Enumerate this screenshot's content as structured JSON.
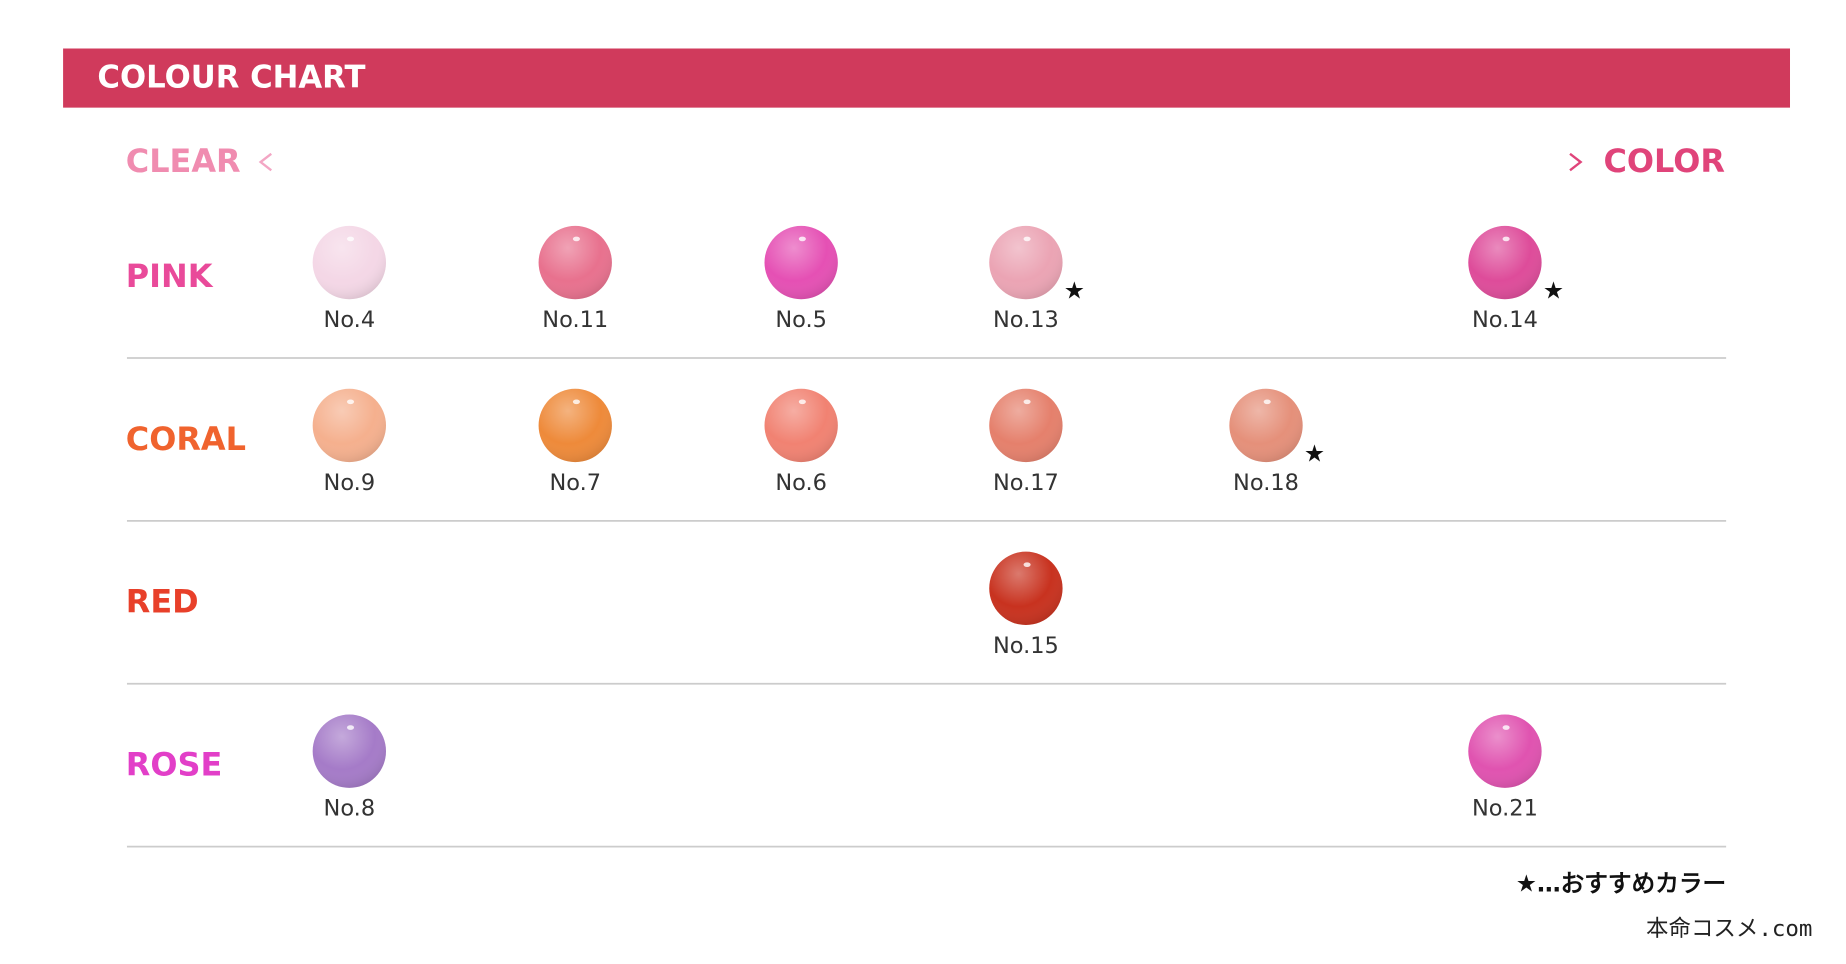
{
  "header": {
    "title": "COLOUR CHART"
  },
  "scale": {
    "left": "CLEAR",
    "right": "COLOR"
  },
  "rows": [
    {
      "label": "PINK",
      "color": "#e94a9a",
      "swatches": [
        {
          "label": "No.4",
          "color": "#f4d7e6"
        },
        {
          "label": "No.11",
          "color": "#e8718e"
        },
        {
          "label": "No.5",
          "color": "#e550b4"
        },
        {
          "label": "No.13",
          "color": "#eba4b4",
          "star": "★"
        },
        null,
        {
          "label": "No.14",
          "color": "#de4c9a",
          "star": "★"
        }
      ]
    },
    {
      "label": "CORAL",
      "color": "#f0632e",
      "swatches": [
        {
          "label": "No.9",
          "color": "#f5b08e"
        },
        {
          "label": "No.7",
          "color": "#ee8a3a"
        },
        {
          "label": "No.6",
          "color": "#f18272"
        },
        {
          "label": "No.17",
          "color": "#e5806c"
        },
        {
          "label": "No.18",
          "color": "#e5907a",
          "star": "★"
        },
        null
      ]
    },
    {
      "label": "RED",
      "color": "#e8402a",
      "swatches": [
        null,
        null,
        null,
        {
          "label": "No.15",
          "color": "#c8321f"
        },
        null,
        null
      ]
    },
    {
      "label": "ROSE",
      "color": "#e23fc8",
      "swatches": [
        {
          "label": "No.8",
          "color": "#a57bc8"
        },
        null,
        null,
        null,
        null,
        {
          "label": "No.21",
          "color": "#e053b0"
        }
      ]
    }
  ],
  "legend": "★…おすすめカラー",
  "watermark": "本命コスメ.com"
}
